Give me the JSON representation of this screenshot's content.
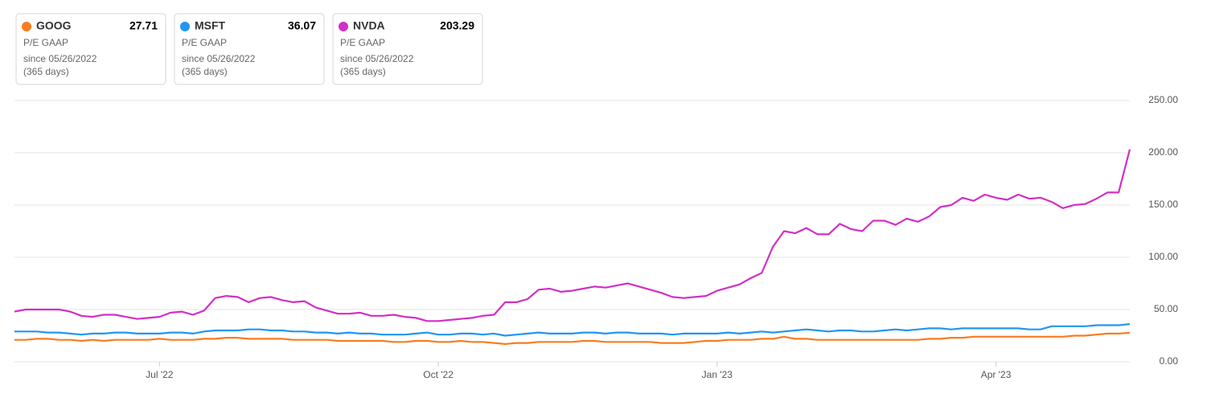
{
  "chart_data": {
    "type": "line",
    "metric": "P/E GAAP",
    "period": "since 05/26/2022",
    "period_length": "(365 days)",
    "categories": [
      null,
      null,
      null,
      null,
      null,
      null,
      null,
      null,
      null,
      null,
      null,
      null,
      null,
      "Jul '22",
      null,
      null,
      null,
      null,
      null,
      null,
      null,
      null,
      null,
      null,
      null,
      null,
      null,
      null,
      null,
      null,
      null,
      null,
      null,
      null,
      null,
      null,
      null,
      null,
      "Oct '22",
      null,
      null,
      null,
      null,
      null,
      null,
      null,
      null,
      null,
      null,
      null,
      null,
      null,
      null,
      null,
      null,
      null,
      null,
      null,
      null,
      null,
      null,
      null,
      null,
      "Jan '23",
      null,
      null,
      null,
      null,
      null,
      null,
      null,
      null,
      null,
      null,
      null,
      null,
      null,
      null,
      null,
      null,
      null,
      null,
      null,
      null,
      null,
      null,
      null,
      null,
      "Apr '23",
      null,
      null,
      null,
      null,
      null,
      null,
      null,
      null,
      null,
      null,
      null,
      null
    ],
    "series": [
      {
        "name": "GOOG",
        "color": "#fa7c1e",
        "values": [
          21,
          21,
          22,
          22,
          21,
          21,
          20,
          21,
          20,
          21,
          21,
          21,
          21,
          22,
          21,
          21,
          21,
          22,
          22,
          23,
          23,
          22,
          22,
          22,
          22,
          21,
          21,
          21,
          21,
          20,
          20,
          20,
          20,
          20,
          19,
          19,
          20,
          20,
          19,
          19,
          20,
          19,
          19,
          18,
          17,
          18,
          18,
          19,
          19,
          19,
          19,
          20,
          20,
          19,
          19,
          19,
          19,
          19,
          18,
          18,
          18,
          19,
          20,
          20,
          21,
          21,
          21,
          22,
          22,
          24,
          22,
          22,
          21,
          21,
          21,
          21,
          21,
          21,
          21,
          21,
          21,
          21,
          22,
          22,
          23,
          23,
          24,
          24,
          24,
          24,
          24,
          24,
          24,
          24,
          24,
          25,
          25,
          26,
          27,
          27,
          27.71
        ]
      },
      {
        "name": "MSFT",
        "color": "#2196f3",
        "values": [
          29,
          29,
          29,
          28,
          28,
          27,
          26,
          27,
          27,
          28,
          28,
          27,
          27,
          27,
          28,
          28,
          27,
          29,
          30,
          30,
          30,
          31,
          31,
          30,
          30,
          29,
          29,
          28,
          28,
          27,
          28,
          27,
          27,
          26,
          26,
          26,
          27,
          28,
          26,
          26,
          27,
          27,
          26,
          27,
          25,
          26,
          27,
          28,
          27,
          27,
          27,
          28,
          28,
          27,
          28,
          28,
          27,
          27,
          27,
          26,
          27,
          27,
          27,
          27,
          28,
          27,
          28,
          29,
          28,
          29,
          30,
          31,
          30,
          29,
          30,
          30,
          29,
          29,
          30,
          31,
          30,
          31,
          32,
          32,
          31,
          32,
          32,
          32,
          32,
          32,
          32,
          31,
          31,
          34,
          34,
          34,
          34,
          35,
          35,
          35,
          36.07
        ]
      },
      {
        "name": "NVDA",
        "color": "#d22fc6",
        "values": [
          48,
          50,
          50,
          50,
          50,
          48,
          44,
          43,
          45,
          45,
          43,
          41,
          42,
          43,
          47,
          48,
          45,
          49,
          61,
          63,
          62,
          57,
          61,
          62,
          59,
          57,
          58,
          52,
          49,
          46,
          46,
          47,
          44,
          44,
          45,
          43,
          42,
          39,
          39,
          40,
          41,
          42,
          44,
          45,
          57,
          57,
          60,
          69,
          70,
          67,
          68,
          70,
          72,
          71,
          73,
          75,
          72,
          69,
          66,
          62,
          61,
          62,
          63,
          68,
          71,
          74,
          80,
          85,
          110,
          125,
          123,
          128,
          122,
          122,
          132,
          127,
          125,
          135,
          135,
          131,
          137,
          134,
          139,
          148,
          150,
          157,
          154,
          160,
          157,
          155,
          160,
          156,
          157,
          153,
          147,
          150,
          151,
          156,
          162,
          162,
          203.29
        ]
      }
    ],
    "ylim": [
      0,
      250
    ],
    "yticks": [
      {
        "value": 0,
        "label": "0.00"
      },
      {
        "value": 50,
        "label": "50.00"
      },
      {
        "value": 100,
        "label": "100.00"
      },
      {
        "value": 150,
        "label": "150.00"
      },
      {
        "value": 200,
        "label": "200.00"
      },
      {
        "value": 250,
        "label": "250.00"
      }
    ],
    "grid": true
  }
}
